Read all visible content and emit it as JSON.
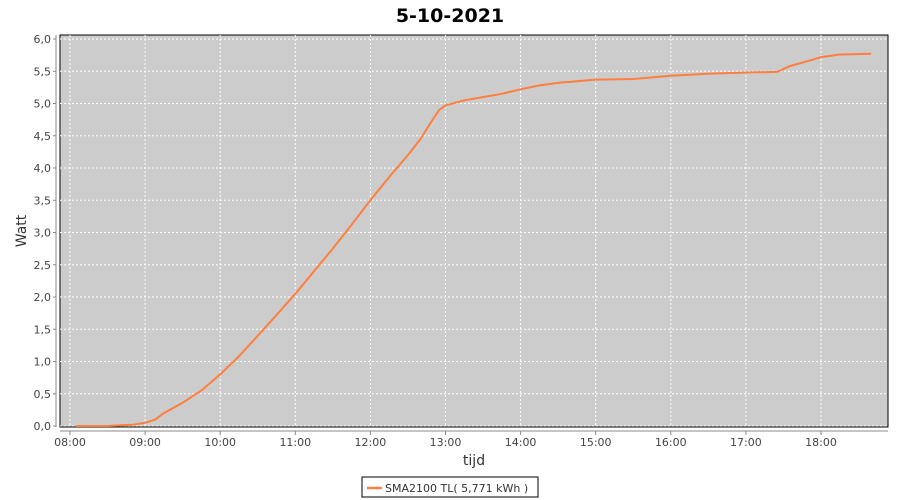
{
  "chart_data": {
    "type": "line",
    "title": "5-10-2021",
    "xlabel": "tijd",
    "ylabel": "Watt",
    "xlim": [
      "07:52",
      "18:55"
    ],
    "ylim": [
      0,
      6.0
    ],
    "x_ticks": [
      "08:00",
      "09:00",
      "10:00",
      "11:00",
      "12:00",
      "13:00",
      "14:00",
      "15:00",
      "16:00",
      "17:00",
      "18:00"
    ],
    "y_ticks": [
      "0,0",
      "0,5",
      "1,0",
      "1,5",
      "2,0",
      "2,5",
      "3,0",
      "3,5",
      "4,0",
      "4,5",
      "5,0",
      "5,5",
      "6,0"
    ],
    "grid": true,
    "legend_position": "bottom",
    "plot_background": "#cccccc",
    "series": [
      {
        "name": "SMA2100 TL( 5,771 kWh )",
        "color": "#ff7f3f",
        "x": [
          "08:05",
          "08:30",
          "08:50",
          "09:00",
          "09:08",
          "09:15",
          "09:30",
          "09:45",
          "10:00",
          "10:15",
          "10:30",
          "10:45",
          "11:00",
          "11:15",
          "11:30",
          "11:45",
          "12:00",
          "12:15",
          "12:30",
          "12:40",
          "12:48",
          "12:55",
          "13:00",
          "13:15",
          "13:30",
          "13:45",
          "14:00",
          "14:15",
          "14:30",
          "15:00",
          "15:30",
          "16:00",
          "16:30",
          "17:00",
          "17:25",
          "17:35",
          "17:50",
          "18:00",
          "18:15",
          "18:40"
        ],
        "y": [
          0.0,
          0.0,
          0.02,
          0.05,
          0.1,
          0.2,
          0.36,
          0.55,
          0.8,
          1.08,
          1.4,
          1.72,
          2.05,
          2.4,
          2.75,
          3.12,
          3.5,
          3.86,
          4.2,
          4.45,
          4.7,
          4.9,
          4.97,
          5.05,
          5.1,
          5.15,
          5.22,
          5.28,
          5.32,
          5.37,
          5.38,
          5.43,
          5.46,
          5.48,
          5.49,
          5.58,
          5.66,
          5.72,
          5.76,
          5.77
        ]
      }
    ]
  }
}
